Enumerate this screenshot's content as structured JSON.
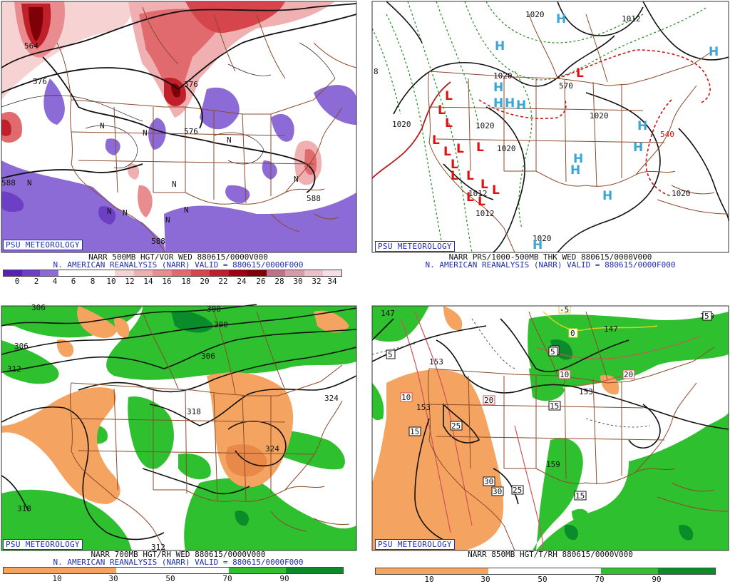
{
  "colors": {
    "psu_blue": "#1f2fb0",
    "vorticity_positive": [
      "#f6d2d3",
      "#f0b0b2",
      "#e98c8f",
      "#e06a6e",
      "#d5454b",
      "#c0202a",
      "#a00010",
      "#800008",
      "#c07088",
      "#d89aaa",
      "#ecc0c8",
      "#f6dfe4"
    ],
    "vorticity_negative": [
      "#8d6bd6",
      "#6d3fc4",
      "#5a1fb5"
    ],
    "rh_dry": "#f4a460",
    "rh_moist": "#2fc02f",
    "rh_very_moist": "#0b8c2b",
    "border": "#8b4a2b",
    "high": "#3aa6d8",
    "low": "#e01010"
  },
  "panels": [
    {
      "logo": "PSU METEOROLOGY",
      "caption": "NARR 500MB HGT/VOR WED 880615/0000V000",
      "subcaption": "N. AMERICAN REANALYSIS (NARR) VALID = 880615/0000F000",
      "colorbar_ticks": [
        "0",
        "2",
        "4",
        "6",
        "8",
        "10",
        "12",
        "14",
        "16",
        "18",
        "20",
        "22",
        "24",
        "26",
        "28",
        "30",
        "32",
        "34"
      ],
      "contour_labels": [
        "576",
        "576",
        "576",
        "564",
        "588",
        "588",
        "588"
      ],
      "n_marks": [
        "N",
        "N",
        "N",
        "N",
        "N",
        "N",
        "N",
        "N",
        "N",
        "N"
      ]
    },
    {
      "logo": "PSU METEOROLOGY",
      "caption": "NARR PRS/1000-500MB THK WED 880615/0000V000",
      "subcaption": "N. AMERICAN REANALYSIS (NARR) VALID = 880615/0000F000",
      "contour_labels": [
        "1020",
        "1020",
        "1012",
        "1020",
        "1020",
        "1012",
        "1020",
        "1020",
        "1012",
        "1020",
        "1020",
        "8",
        "540",
        "570"
      ],
      "high_letter": "H",
      "low_letter": "L"
    },
    {
      "logo": "PSU METEOROLOGY",
      "caption": "NARR 700MB HGT/RH WED 880615/0000V000",
      "subcaption": "N. AMERICAN REANALYSIS (NARR) VALID = 880615/0000F000",
      "colorbar_ticks": [
        "10",
        "30",
        "50",
        "70",
        "90"
      ],
      "contour_labels": [
        "300",
        "306",
        "312",
        "306",
        "300",
        "318",
        "324",
        "324",
        "318",
        "312",
        "306"
      ]
    },
    {
      "logo": "PSU METEOROLOGY",
      "caption": "NARR 850MB HGT/T/RH 880615/0000V000",
      "colorbar_ticks": [
        "10",
        "30",
        "50",
        "70",
        "90"
      ],
      "contour_labels": [
        "147",
        "153",
        "153",
        "153",
        "159",
        "159",
        "147"
      ],
      "boxed_labels": [
        "5",
        "5",
        "10",
        "15",
        "20",
        "25",
        "30",
        "30",
        "25",
        "15",
        "10",
        "20",
        "5",
        "15",
        "0",
        "-5",
        "5"
      ]
    }
  ]
}
